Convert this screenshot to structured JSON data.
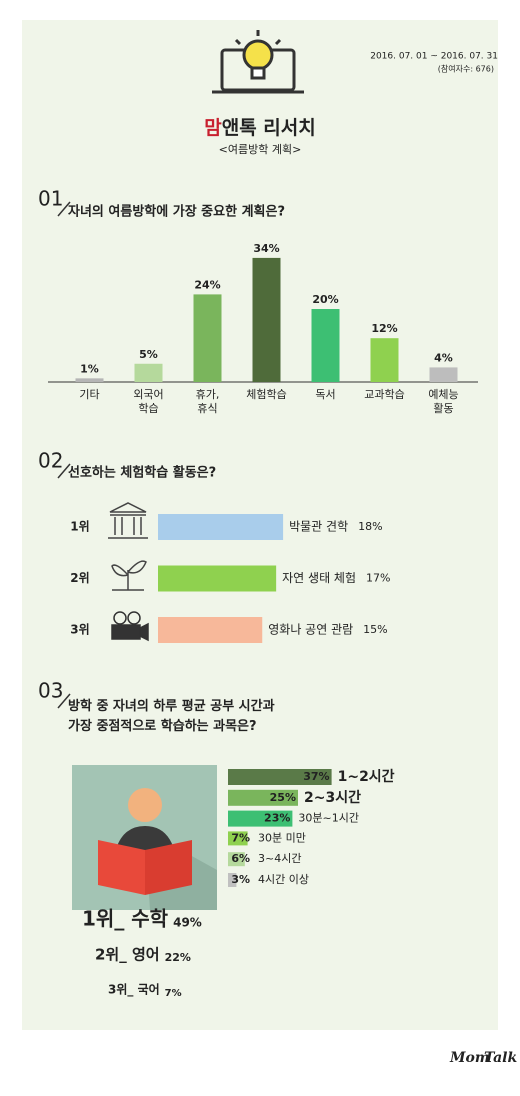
{
  "header": {
    "title_highlight": "맘",
    "title_rest": "앤톡 리서치",
    "subtitle": "<여름방학 계획>",
    "period": "2016. 07. 01 ~ 2016. 07. 31",
    "participants": "(참여자수: 676)"
  },
  "chart_data": [
    {
      "type": "bar",
      "number": "01",
      "title": "자녀의 여름방학에 가장 중요한 계획은?",
      "categories": [
        "기타",
        "외국어\n학습",
        "휴가,\n휴식",
        "체험학습",
        "독서",
        "교과학습",
        "예체능\n활동"
      ],
      "values": [
        1,
        5,
        24,
        34,
        20,
        12,
        4
      ],
      "value_labels": [
        "1%",
        "5%",
        "24%",
        "34%",
        "20%",
        "12%",
        "4%"
      ],
      "colors": [
        "#b5b5b5",
        "#b5d99c",
        "#7ab55c",
        "#4f6b3a",
        "#3dbf73",
        "#8fd14f",
        "#bdbdbd"
      ]
    },
    {
      "type": "hbar-rank",
      "number": "02",
      "title": "선호하는 체험학습 활동은?",
      "ranks": [
        "1위",
        "2위",
        "3위"
      ],
      "categories": [
        "박물관 견학",
        "자연 생태 체험",
        "영화나 공연 관람"
      ],
      "values": [
        18,
        17,
        15
      ],
      "value_labels": [
        "18%",
        "17%",
        "15%"
      ],
      "colors": [
        "#a9cdeb",
        "#8fd14f",
        "#f7b89a"
      ]
    },
    {
      "type": "hbar",
      "number": "03",
      "title": "방학 중 자녀의 하루 평균 공부 시간과\n가장 중점적으로 학습하는 과목은?",
      "categories": [
        "1~2시간",
        "2~3시간",
        "30분~1시간",
        "30분 미만",
        "3~4시간",
        "4시간 이상"
      ],
      "values": [
        37,
        25,
        23,
        7,
        6,
        3
      ],
      "value_labels": [
        "37%",
        "25%",
        "23%",
        "7%",
        "6%",
        "3%"
      ],
      "colors": [
        "#5a7a48",
        "#7ab55c",
        "#3dbf73",
        "#8fd14f",
        "#b5d99c",
        "#c0c0c0"
      ]
    },
    {
      "type": "ranking",
      "categories": [
        "1위_ 수학",
        "2위_ 영어",
        "3위_ 국어"
      ],
      "values": [
        49,
        22,
        7
      ],
      "value_labels": [
        "49%",
        "22%",
        "7%"
      ]
    }
  ],
  "footer": {
    "logo_mom": "Mom",
    "logo_talk": "Talk"
  }
}
